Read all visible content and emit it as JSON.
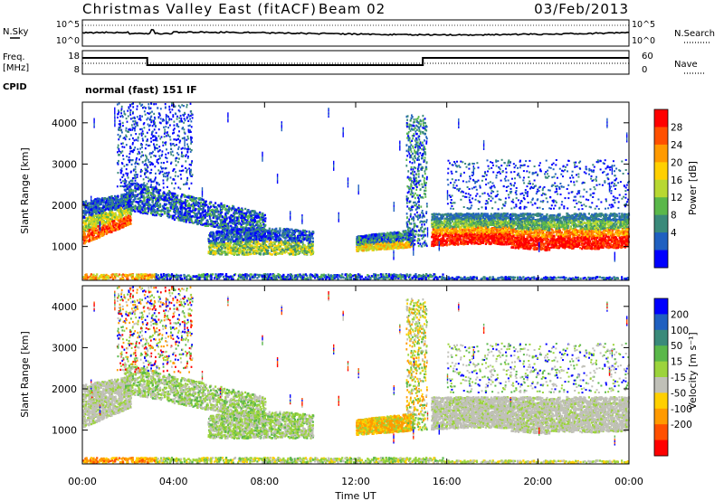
{
  "header": {
    "station": "Christmas Valley East (fitACF)",
    "beam": "Beam 02",
    "date": "03/Feb/2013"
  },
  "noise_panel": {
    "left_label": "N.Sky",
    "right_label": "N.Search",
    "left_ticks": [
      "10^5",
      "10^0"
    ],
    "right_ticks": [
      "10^5",
      "10^0"
    ]
  },
  "freq_panel": {
    "left_label_1": "Freq.",
    "left_label_2": "[MHz]",
    "right_label": "Nave",
    "cpid_label": "CPID",
    "left_ticks": [
      "18",
      "8"
    ],
    "right_ticks": [
      "60",
      "0"
    ],
    "cpid_text": "normal (fast) 151 IF"
  },
  "power_colorbar": {
    "label": "Power [dB]",
    "ticks": [
      "28",
      "24",
      "20",
      "16",
      "12",
      "8",
      "4"
    ],
    "colors": [
      "#ff0000",
      "#ff5000",
      "#ff9a00",
      "#ffd000",
      "#b8d832",
      "#5ab84a",
      "#3a8a7a",
      "#2060c0",
      "#0000ff"
    ]
  },
  "velocity_colorbar": {
    "label": "Velocity [m s⁻¹]",
    "ticks": [
      "200",
      "100",
      "50",
      "15",
      "-15",
      "-50",
      "-100",
      "-200"
    ],
    "colors": [
      "#0000ff",
      "#2060c0",
      "#3a8a7a",
      "#5ab84a",
      "#9cd43c",
      "#c0c0b8",
      "#ffd000",
      "#ff9a00",
      "#ff5000",
      "#ff0000"
    ]
  },
  "chart_data": [
    {
      "type": "heatmap",
      "name": "power",
      "xlabel": "",
      "ylabel": "Slant Range [km]",
      "x_ticks": [
        "00:00",
        "04:00",
        "08:00",
        "12:00",
        "16:00",
        "20:00",
        "00:00"
      ],
      "y_ticks": [
        1000,
        2000,
        3000,
        4000
      ],
      "xlim": [
        0,
        24
      ],
      "ylim": [
        180,
        4500
      ],
      "grid": false
    },
    {
      "type": "heatmap",
      "name": "velocity",
      "xlabel": "Time UT",
      "ylabel": "Slant Range [km]",
      "x_ticks": [
        "00:00",
        "04:00",
        "08:00",
        "12:00",
        "16:00",
        "20:00",
        "00:00"
      ],
      "y_ticks": [
        1000,
        2000,
        3000,
        4000
      ],
      "xlim": [
        0,
        24
      ],
      "ylim": [
        180,
        4500
      ],
      "grid": false
    },
    {
      "type": "line",
      "name": "frequency",
      "x": [
        0,
        2.85,
        2.85,
        14.95,
        14.95,
        24
      ],
      "y": [
        14.3,
        14.3,
        10.6,
        10.6,
        14.3,
        14.3
      ],
      "ylim": [
        6,
        18
      ]
    }
  ]
}
